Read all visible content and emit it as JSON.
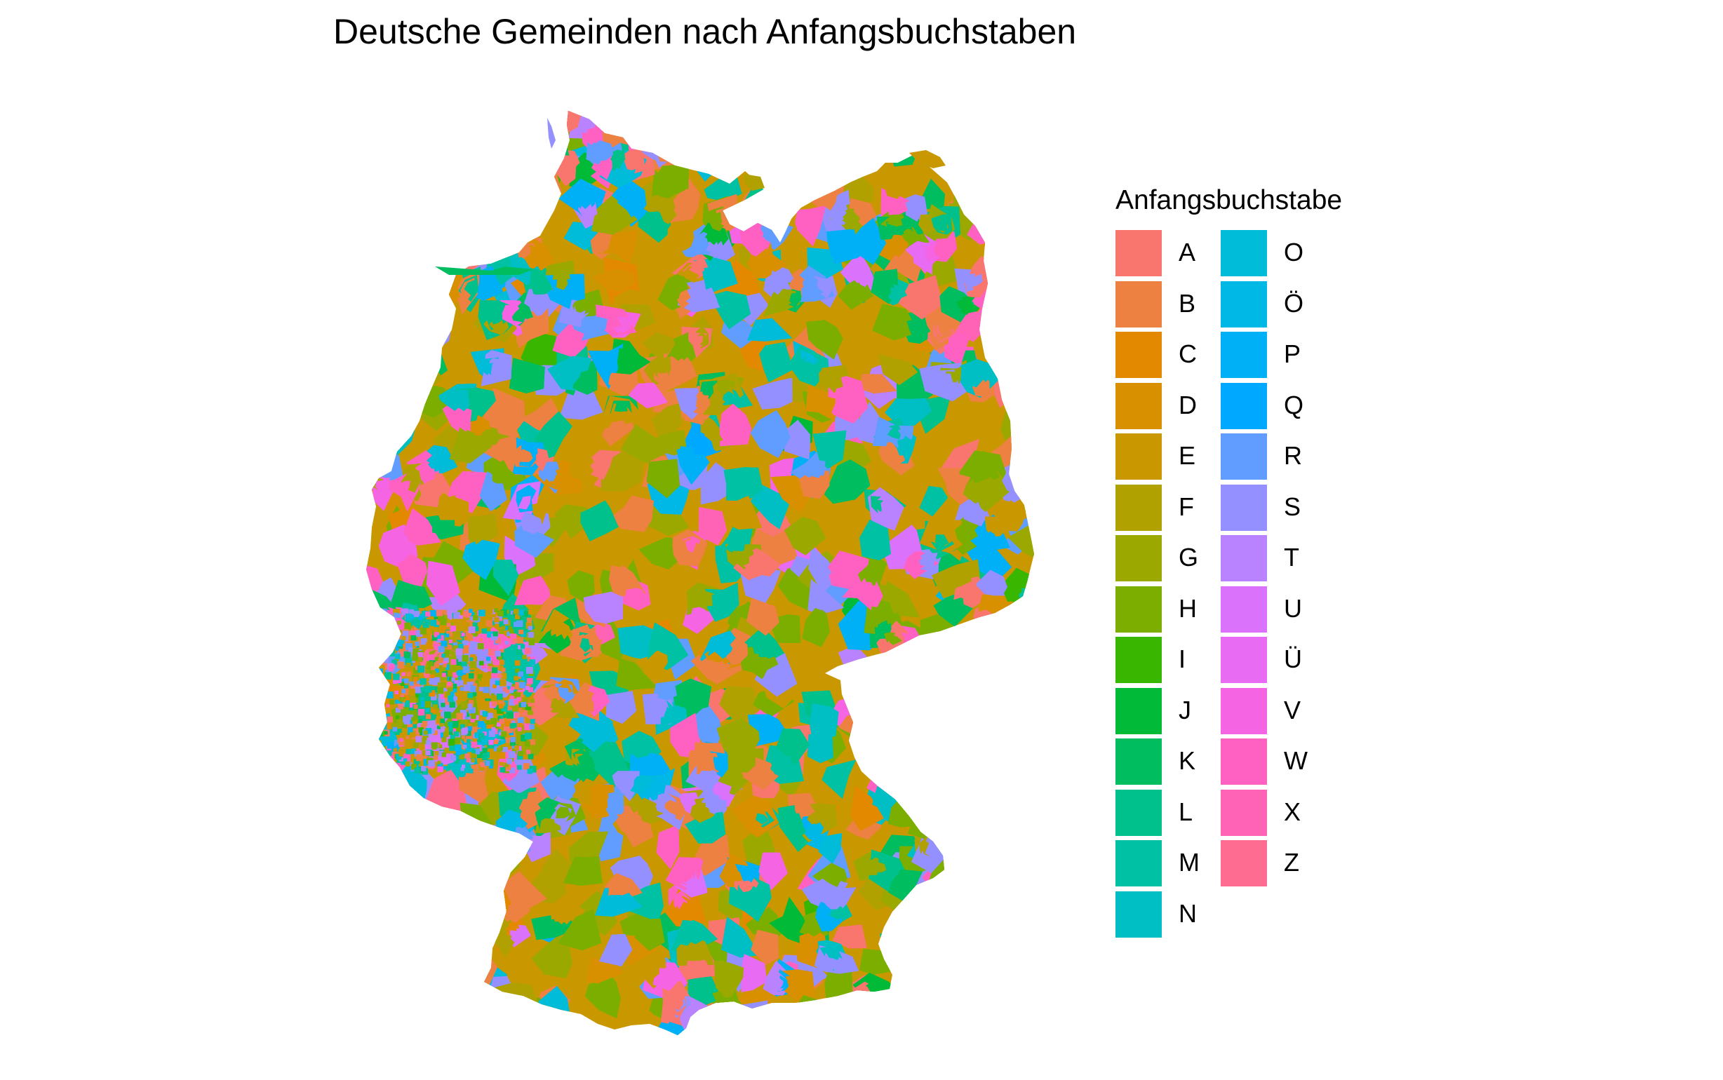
{
  "title": "Deutsche Gemeinden nach Anfangsbuchstaben",
  "legend": {
    "title": "Anfangsbuchstabe",
    "placement": "right",
    "columns": 2,
    "items": [
      {
        "label": "A",
        "color": "#F8766D"
      },
      {
        "label": "B",
        "color": "#ED8141"
      },
      {
        "label": "C",
        "color": "#E38900"
      },
      {
        "label": "D",
        "color": "#D89000"
      },
      {
        "label": "E",
        "color": "#C99800"
      },
      {
        "label": "F",
        "color": "#B0A100"
      },
      {
        "label": "G",
        "color": "#9AA800"
      },
      {
        "label": "H",
        "color": "#7CAE00"
      },
      {
        "label": "I",
        "color": "#39B600"
      },
      {
        "label": "J",
        "color": "#00BA38"
      },
      {
        "label": "K",
        "color": "#00BD5F"
      },
      {
        "label": "L",
        "color": "#00C08B"
      },
      {
        "label": "M",
        "color": "#00C1A4"
      },
      {
        "label": "N",
        "color": "#00BFC4"
      },
      {
        "label": "O",
        "color": "#00BCD8"
      },
      {
        "label": "Ö",
        "color": "#00B8E5"
      },
      {
        "label": "P",
        "color": "#00B0F6"
      },
      {
        "label": "Q",
        "color": "#00A9FF"
      },
      {
        "label": "R",
        "color": "#619CFF"
      },
      {
        "label": "S",
        "color": "#9590FF"
      },
      {
        "label": "T",
        "color": "#B983FF"
      },
      {
        "label": "U",
        "color": "#DB72FB"
      },
      {
        "label": "Ü",
        "color": "#E76BF3"
      },
      {
        "label": "V",
        "color": "#F564E3"
      },
      {
        "label": "W",
        "color": "#FF61C3"
      },
      {
        "label": "X",
        "color": "#FF63B6"
      },
      {
        "label": "Z",
        "color": "#FF6C91"
      }
    ]
  }
}
